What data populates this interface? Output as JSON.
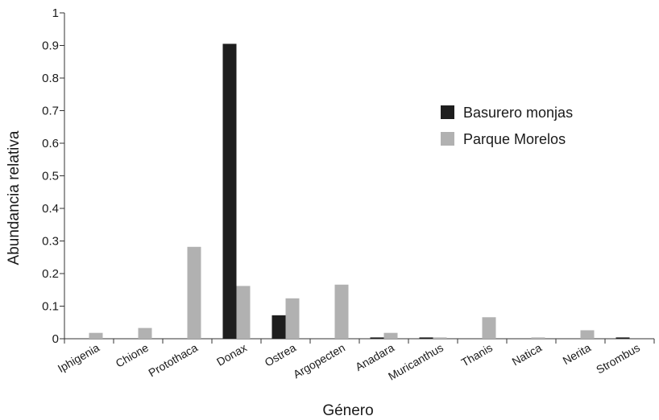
{
  "chart_data": {
    "type": "bar",
    "xlabel": "Género",
    "ylabel": "Abundancia relativa",
    "ylim": [
      0,
      1
    ],
    "yticks": [
      "0",
      "0.1",
      "0.2",
      "0.3",
      "0.4",
      "0.5",
      "0.6",
      "0.7",
      "0.8",
      "0.9",
      "1"
    ],
    "grid": false,
    "legend_position": "right",
    "categories": [
      "Iphigenia",
      "Chione",
      "Protothaca",
      "Donax",
      "Ostrea",
      "Argopecten",
      "Anadara",
      "Muricanthus",
      "Thanis",
      "Natica",
      "Nerita",
      "Strombus"
    ],
    "series": [
      {
        "name": "Basurero monjas",
        "color": "#1e1e1e",
        "values": [
          0,
          0,
          0,
          0.905,
          0.072,
          0,
          0.004,
          0.004,
          0,
          0,
          0,
          0.004
        ]
      },
      {
        "name": "Parque Morelos",
        "color": "#b1b1b1",
        "values": [
          0.018,
          0.033,
          0.282,
          0.162,
          0.124,
          0.166,
          0.018,
          0.004,
          0.066,
          0.004,
          0.026,
          0
        ]
      }
    ]
  }
}
